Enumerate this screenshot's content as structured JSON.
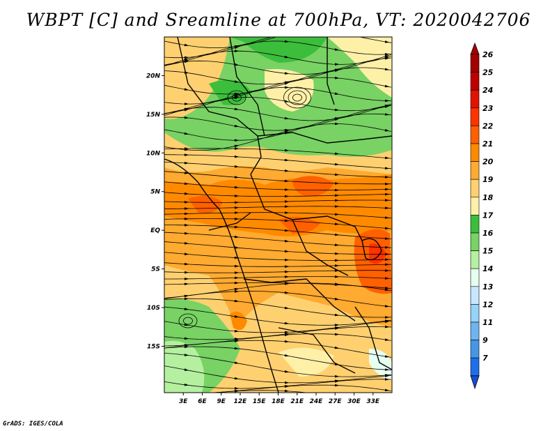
{
  "title": "WBPT [C] and Sreamline at 700hPa, VT: 2020042706",
  "credit": "GrADS: IGES/COLA",
  "map": {
    "lat_range": [
      -21,
      25
    ],
    "lon_range": [
      0,
      36
    ],
    "lat_ticks": [
      {
        "value": 20,
        "label": "20N"
      },
      {
        "value": 15,
        "label": "15N"
      },
      {
        "value": 10,
        "label": "10N"
      },
      {
        "value": 5,
        "label": "5N"
      },
      {
        "value": 0,
        "label": "EQ"
      },
      {
        "value": -5,
        "label": "5S"
      },
      {
        "value": -10,
        "label": "10S"
      },
      {
        "value": -15,
        "label": "15S"
      }
    ],
    "lon_ticks": [
      {
        "value": 3,
        "label": "3E"
      },
      {
        "value": 6,
        "label": "6E"
      },
      {
        "value": 9,
        "label": "9E"
      },
      {
        "value": 12,
        "label": "12E"
      },
      {
        "value": 15,
        "label": "15E"
      },
      {
        "value": 18,
        "label": "18E"
      },
      {
        "value": 21,
        "label": "21E"
      },
      {
        "value": 24,
        "label": "24E"
      },
      {
        "value": 27,
        "label": "27E"
      },
      {
        "value": 30,
        "label": "30E"
      },
      {
        "value": 33,
        "label": "33E"
      }
    ]
  },
  "colorbar": {
    "levels": [
      {
        "label": "26",
        "color": "#a50000"
      },
      {
        "label": "25",
        "color": "#c00000"
      },
      {
        "label": "24",
        "color": "#e11400"
      },
      {
        "label": "23",
        "color": "#ff3200"
      },
      {
        "label": "22",
        "color": "#ff6000"
      },
      {
        "label": "21",
        "color": "#ff8a00"
      },
      {
        "label": "20",
        "color": "#ffaa30"
      },
      {
        "label": "19",
        "color": "#ffd070"
      },
      {
        "label": "18",
        "color": "#fff0a8"
      },
      {
        "label": "17",
        "color": "#3cbe3c"
      },
      {
        "label": "16",
        "color": "#78d264"
      },
      {
        "label": "15",
        "color": "#b4f0a0"
      },
      {
        "label": "14",
        "color": "#e6fff0"
      },
      {
        "label": "13",
        "color": "#c8e6ff"
      },
      {
        "label": "12",
        "color": "#96d2fa"
      },
      {
        "label": "11",
        "color": "#6eb4f0"
      },
      {
        "label": "9",
        "color": "#4696e6"
      },
      {
        "label": "7",
        "color": "#1e6eeb"
      }
    ],
    "bottom_color": "#1450d2"
  }
}
